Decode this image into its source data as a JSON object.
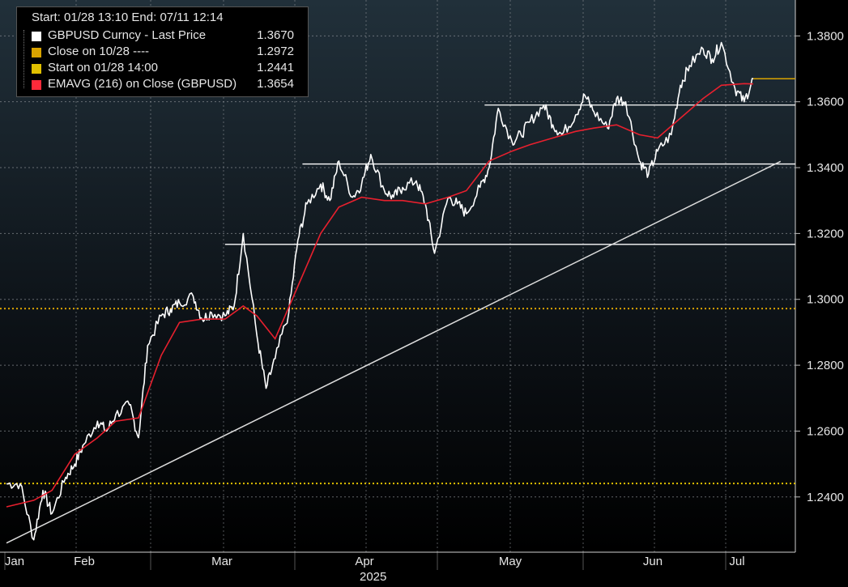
{
  "legend": {
    "header": "Start: 01/28 13:10 End: 07/11 12:14",
    "items": [
      {
        "label": "GBPUSD Curncy - Last Price",
        "value": "1.3670",
        "color": "#ffffff"
      },
      {
        "label": "Close on 10/28 ----",
        "value": "1.2972",
        "color": "#d9a300"
      },
      {
        "label": "Start on 01/28 14:00",
        "value": "1.2441",
        "color": "#e0c000"
      },
      {
        "label": "EMAVG (216)  on Close (GBPUSD)",
        "value": "1.3654",
        "color": "#ff2a3a"
      }
    ]
  },
  "year_label": "2025",
  "chart_data": {
    "type": "line",
    "ylim": [
      1.222,
      1.385
    ],
    "y_ticks": [
      "1.2400",
      "1.2600",
      "1.2800",
      "1.3000",
      "1.3200",
      "1.3400",
      "1.3600",
      "1.3800"
    ],
    "x_ticks": [
      "Jan",
      "Feb",
      "Mar",
      "Apr",
      "May",
      "Jun",
      "Jul"
    ],
    "grid": true,
    "colors": {
      "price": "#ffffff",
      "ema": "#e8202e",
      "close_line": "#d9a300",
      "start_line": "#e0c000",
      "support": "#ffffff",
      "last_marker": "#d9a300"
    },
    "series": [
      {
        "name": "GBPUSD Curncy - Last Price",
        "x": [
          "01/28",
          "01/31",
          "02/03",
          "02/05",
          "02/07",
          "02/10",
          "02/12",
          "02/14",
          "02/17",
          "02/19",
          "02/21",
          "02/24",
          "02/26",
          "02/28",
          "03/03",
          "03/05",
          "03/07",
          "03/10",
          "03/12",
          "03/14",
          "03/17",
          "03/19",
          "03/21",
          "03/24",
          "03/26",
          "03/28",
          "03/31",
          "04/02",
          "04/04",
          "04/07",
          "04/09",
          "04/11",
          "04/14",
          "04/16",
          "04/18",
          "04/21",
          "04/23",
          "04/25",
          "04/28",
          "04/30",
          "05/02",
          "05/05",
          "05/07",
          "05/09",
          "05/12",
          "05/14",
          "05/16",
          "05/19",
          "05/21",
          "05/23",
          "05/26",
          "05/28",
          "05/30",
          "06/02",
          "06/04",
          "06/06",
          "06/09",
          "06/11",
          "06/13",
          "06/16",
          "06/18",
          "06/20",
          "06/23",
          "06/25",
          "06/27",
          "06/30",
          "07/02",
          "07/04",
          "07/07",
          "07/09",
          "07/11"
        ],
        "values": [
          1.244,
          1.244,
          1.227,
          1.242,
          1.235,
          1.246,
          1.25,
          1.256,
          1.263,
          1.26,
          1.265,
          1.268,
          1.258,
          1.286,
          1.295,
          1.297,
          1.299,
          1.301,
          1.294,
          1.296,
          1.295,
          1.298,
          1.32,
          1.289,
          1.273,
          1.282,
          1.296,
          1.318,
          1.329,
          1.335,
          1.33,
          1.342,
          1.331,
          1.335,
          1.344,
          1.333,
          1.331,
          1.334,
          1.336,
          1.329,
          1.314,
          1.331,
          1.329,
          1.326,
          1.334,
          1.34,
          1.358,
          1.348,
          1.35,
          1.354,
          1.359,
          1.353,
          1.35,
          1.356,
          1.362,
          1.357,
          1.352,
          1.361,
          1.36,
          1.342,
          1.338,
          1.345,
          1.35,
          1.365,
          1.371,
          1.376,
          1.373,
          1.378,
          1.364,
          1.36,
          1.367
        ]
      },
      {
        "name": "EMAVG (216)  on Close (GBPUSD)",
        "x": [
          "01/28",
          "02/03",
          "02/07",
          "02/12",
          "02/17",
          "02/21",
          "02/26",
          "03/03",
          "03/07",
          "03/12",
          "03/17",
          "03/21",
          "03/24",
          "03/28",
          "04/02",
          "04/07",
          "04/11",
          "04/16",
          "04/21",
          "04/25",
          "04/30",
          "05/05",
          "05/09",
          "05/14",
          "05/19",
          "05/23",
          "05/28",
          "06/02",
          "06/06",
          "06/11",
          "06/16",
          "06/20",
          "06/25",
          "06/30",
          "07/04",
          "07/09",
          "07/11"
        ],
        "values": [
          1.237,
          1.239,
          1.242,
          1.253,
          1.258,
          1.263,
          1.264,
          1.283,
          1.293,
          1.294,
          1.294,
          1.298,
          1.295,
          1.288,
          1.304,
          1.32,
          1.328,
          1.331,
          1.33,
          1.33,
          1.329,
          1.331,
          1.333,
          1.342,
          1.345,
          1.347,
          1.349,
          1.351,
          1.352,
          1.353,
          1.35,
          1.349,
          1.355,
          1.361,
          1.365,
          1.3655,
          1.3654
        ]
      }
    ],
    "reference_lines": [
      {
        "label": "Close on 10/28 ----",
        "y": 1.2972,
        "style": "dotted"
      },
      {
        "label": "Start on 01/28 14:00",
        "y": 1.2441,
        "style": "dotted"
      }
    ],
    "support_lines": [
      {
        "y": 1.3167,
        "from": "03/17"
      },
      {
        "y": 1.3411,
        "from": "04/03"
      },
      {
        "y": 1.359,
        "from": "05/13"
      }
    ],
    "trendline": {
      "from": [
        "01/28",
        1.226
      ],
      "to": [
        "07/17",
        1.3419
      ]
    },
    "last_value_marker": 1.367
  }
}
